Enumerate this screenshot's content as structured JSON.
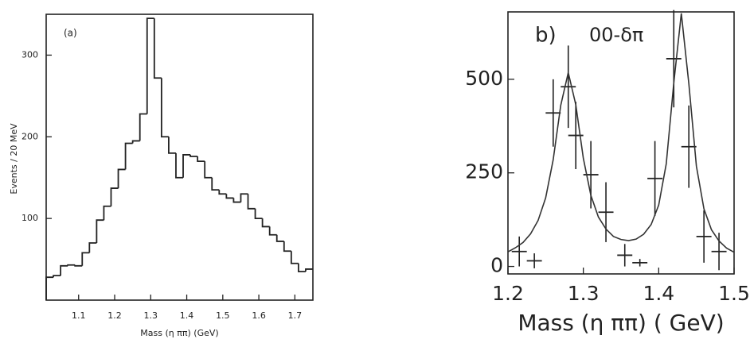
{
  "chart_data": [
    {
      "type": "histogram",
      "panel_label": "(a)",
      "ylabel": "Events / 20 MeV",
      "xlabel": "Mass (η ππ) (GeV)",
      "color": "#222",
      "bins": [
        1.01,
        1.03,
        1.05,
        1.07,
        1.09,
        1.11,
        1.13,
        1.15,
        1.17,
        1.19,
        1.21,
        1.23,
        1.25,
        1.27,
        1.29,
        1.31,
        1.33,
        1.35,
        1.37,
        1.39,
        1.41,
        1.43,
        1.45,
        1.47,
        1.49,
        1.51,
        1.53,
        1.55,
        1.57,
        1.59,
        1.61,
        1.63,
        1.65,
        1.67,
        1.69,
        1.71,
        1.73,
        1.75
      ],
      "values": [
        28,
        30,
        42,
        43,
        42,
        58,
        70,
        98,
        115,
        137,
        160,
        192,
        195,
        228,
        345,
        272,
        200,
        180,
        150,
        178,
        176,
        170,
        150,
        135,
        130,
        125,
        120,
        130,
        112,
        100,
        90,
        80,
        72,
        60,
        45,
        35,
        38
      ],
      "xlim": [
        1.01,
        1.75
      ],
      "ylim": [
        0,
        350
      ],
      "xticks": [
        1.1,
        1.2,
        1.3,
        1.4,
        1.5,
        1.6,
        1.7
      ],
      "yticks": [
        100,
        200,
        300
      ]
    },
    {
      "type": "errorbar",
      "panel_label": "b)",
      "annotation": "00-δπ",
      "xlabel": "Mass (η ππ) ( GeV)",
      "xlim": [
        1.2,
        1.5
      ],
      "ylim": [
        -20,
        680
      ],
      "xticks": [
        1.2,
        1.3,
        1.4,
        1.5
      ],
      "yticks": [
        0,
        250,
        500
      ],
      "series": [
        {
          "type": "errorbar",
          "color": "#222",
          "xerr": 0.01,
          "x": [
            1.215,
            1.235,
            1.26,
            1.28,
            1.29,
            1.31,
            1.33,
            1.355,
            1.375,
            1.395,
            1.42,
            1.44,
            1.46,
            1.48
          ],
          "values": [
            40,
            15,
            410,
            480,
            350,
            245,
            145,
            30,
            10,
            235,
            555,
            320,
            80,
            40
          ],
          "errors": [
            40,
            20,
            90,
            110,
            90,
            90,
            80,
            30,
            10,
            100,
            130,
            110,
            70,
            50
          ]
        },
        {
          "type": "line",
          "color": "#333",
          "x": [
            1.2,
            1.21,
            1.22,
            1.23,
            1.24,
            1.25,
            1.26,
            1.27,
            1.28,
            1.29,
            1.3,
            1.31,
            1.32,
            1.33,
            1.34,
            1.35,
            1.36,
            1.37,
            1.38,
            1.39,
            1.4,
            1.41,
            1.42,
            1.43,
            1.44,
            1.45,
            1.46,
            1.47,
            1.48,
            1.49,
            1.5
          ],
          "values": [
            39,
            50,
            64,
            87,
            123,
            183,
            285,
            430,
            518,
            432,
            289,
            190,
            132,
            100,
            80,
            72,
            69,
            73,
            86,
            112,
            164,
            274,
            490,
            676,
            488,
            268,
            154,
            98,
            68,
            49,
            38
          ]
        }
      ]
    }
  ]
}
